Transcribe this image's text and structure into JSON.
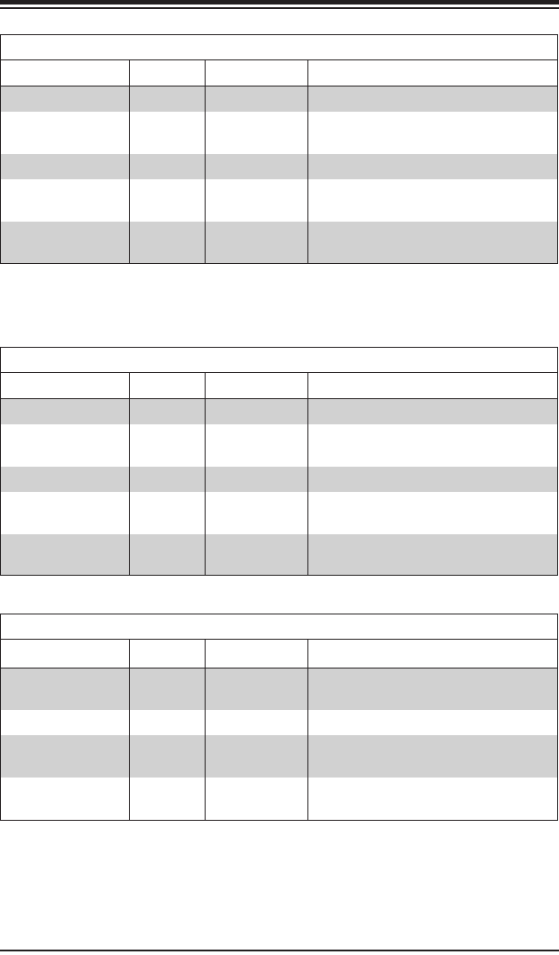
{
  "colors": {
    "rule": "#231f20",
    "shaded_row": "#d1d1d1",
    "background": "#ffffff"
  },
  "tables": [
    {
      "title": "",
      "header": [
        "",
        "",
        "",
        ""
      ],
      "row_shading": [
        true,
        false,
        true,
        false,
        true
      ]
    },
    {
      "title": "",
      "header": [
        "",
        "",
        "",
        ""
      ],
      "row_shading": [
        true,
        false,
        true,
        false,
        true
      ]
    },
    {
      "title": "",
      "header": [
        "",
        "",
        "",
        ""
      ],
      "row_shading": [
        true,
        false,
        true,
        false
      ]
    }
  ]
}
